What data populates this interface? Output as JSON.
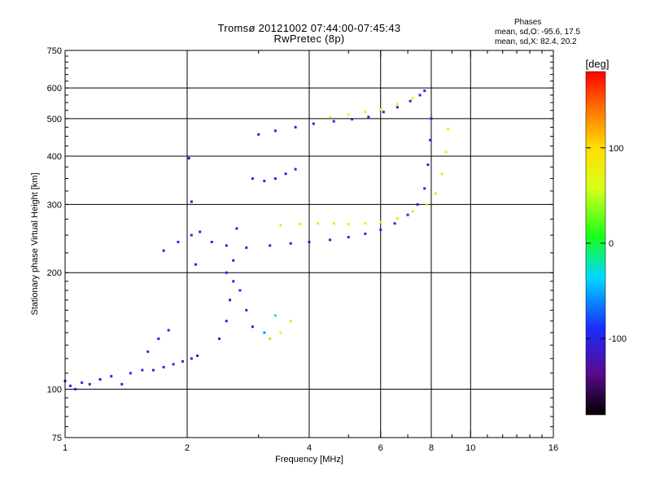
{
  "header": {
    "title_line1": "Tromsø 20121002 07:44:00-07:45:43",
    "title_line2": "RwPretec (8p)",
    "stats_title": "Phases",
    "stats_o": "mean, sd,O: -95.6, 17.5",
    "stats_x": "mean, sd,X:  82.4, 20.2"
  },
  "chart_data": {
    "type": "scatter",
    "title": "Tromsø 20121002 07:44:00-07:45:43",
    "subtitle": "RwPretec (8p)",
    "xlabel": "Frequency [MHz]",
    "ylabel": "Stationary phase Virtual Height [km]",
    "x_scale": "log",
    "y_scale": "log",
    "xlim": [
      1,
      16
    ],
    "ylim": [
      75,
      750
    ],
    "x_ticks": [
      1,
      2,
      4,
      6,
      8,
      10,
      16
    ],
    "y_ticks": [
      75,
      100,
      200,
      300,
      400,
      500,
      600,
      750
    ],
    "x_gridlines": [
      2,
      4,
      6,
      8,
      10
    ],
    "y_gridlines": [
      100,
      200,
      300,
      400,
      500,
      600
    ],
    "grid": true,
    "colorbar": {
      "label": "[deg]",
      "ticks": [
        -100,
        0,
        100
      ],
      "range": [
        -180,
        180
      ],
      "colormap": "rainbow: black-purple-blue-cyan-green-yellow-orange-red"
    },
    "series": [
      {
        "values": [
          [
            1.0,
            105,
            -110
          ],
          [
            1.03,
            102,
            -105
          ],
          [
            1.06,
            100,
            -100
          ],
          [
            1.1,
            104,
            -95
          ],
          [
            1.15,
            103,
            -105
          ],
          [
            1.22,
            106,
            -100
          ],
          [
            1.3,
            108,
            -95
          ],
          [
            1.38,
            103,
            -100
          ],
          [
            1.45,
            110,
            -90
          ],
          [
            1.55,
            112,
            -100
          ],
          [
            1.65,
            112,
            -105
          ],
          [
            1.75,
            114,
            -100
          ],
          [
            1.85,
            116,
            -95
          ],
          [
            1.95,
            118,
            -105
          ],
          [
            2.05,
            120,
            -100
          ],
          [
            2.12,
            122,
            -110
          ],
          [
            1.6,
            125,
            -90
          ],
          [
            1.7,
            135,
            -95
          ],
          [
            1.8,
            142,
            -100
          ]
        ]
      },
      {
        "values": [
          [
            2.3,
            240,
            -100
          ],
          [
            2.5,
            235,
            -105
          ],
          [
            2.8,
            232,
            -110
          ],
          [
            3.2,
            235,
            -110
          ],
          [
            3.6,
            238,
            -105
          ],
          [
            4.0,
            240,
            -105
          ],
          [
            4.5,
            243,
            -100
          ],
          [
            5.0,
            247,
            -100
          ],
          [
            5.5,
            252,
            -95
          ],
          [
            6.0,
            258,
            -95
          ],
          [
            6.5,
            268,
            -95
          ],
          [
            7.0,
            282,
            -90
          ],
          [
            7.4,
            300,
            -95
          ],
          [
            7.7,
            330,
            -100
          ],
          [
            7.85,
            380,
            -100
          ],
          [
            7.95,
            440,
            -105
          ],
          [
            8.0,
            500,
            -105
          ]
        ]
      },
      {
        "values": [
          [
            3.4,
            265,
            80
          ],
          [
            3.8,
            267,
            85
          ],
          [
            4.2,
            268,
            90
          ],
          [
            4.6,
            268,
            85
          ],
          [
            5.0,
            267,
            80
          ],
          [
            5.5,
            268,
            85
          ],
          [
            6.0,
            270,
            80
          ],
          [
            6.6,
            276,
            85
          ],
          [
            7.2,
            288,
            80
          ],
          [
            7.8,
            300,
            85
          ],
          [
            8.2,
            320,
            90
          ],
          [
            8.5,
            360,
            85
          ],
          [
            8.7,
            410,
            80
          ],
          [
            8.8,
            470,
            85
          ]
        ]
      },
      {
        "values": [
          [
            3.0,
            455,
            -110
          ],
          [
            3.3,
            465,
            -110
          ],
          [
            3.7,
            475,
            -105
          ],
          [
            4.1,
            485,
            -100
          ],
          [
            4.6,
            492,
            -95
          ],
          [
            5.1,
            498,
            -100
          ],
          [
            5.6,
            505,
            -90
          ],
          [
            6.1,
            520,
            -100
          ],
          [
            6.6,
            535,
            -95
          ],
          [
            7.1,
            555,
            -100
          ],
          [
            7.5,
            575,
            -105
          ],
          [
            7.7,
            590,
            -100
          ]
        ]
      },
      {
        "values": [
          [
            4.5,
            505,
            60
          ],
          [
            5.0,
            512,
            70
          ],
          [
            5.5,
            520,
            75
          ],
          [
            6.0,
            528,
            70
          ],
          [
            6.6,
            545,
            80
          ],
          [
            7.2,
            565,
            70
          ]
        ]
      },
      {
        "values": [
          [
            2.4,
            135,
            -95
          ],
          [
            2.5,
            150,
            -100
          ],
          [
            2.55,
            170,
            -105
          ],
          [
            2.6,
            190,
            -100
          ],
          [
            2.7,
            180,
            -95
          ],
          [
            2.8,
            160,
            -100
          ],
          [
            2.9,
            145,
            -95
          ],
          [
            2.5,
            200,
            -110
          ],
          [
            2.6,
            215,
            -105
          ],
          [
            2.65,
            260,
            -110
          ],
          [
            3.1,
            140,
            -60
          ],
          [
            3.2,
            135,
            40
          ],
          [
            3.4,
            140,
            60
          ],
          [
            3.6,
            150,
            50
          ],
          [
            3.3,
            155,
            -10
          ]
        ]
      },
      {
        "values": [
          [
            2.9,
            350,
            -95
          ],
          [
            3.1,
            345,
            -100
          ],
          [
            3.3,
            350,
            -95
          ],
          [
            3.5,
            360,
            -100
          ],
          [
            3.7,
            370,
            -95
          ]
        ]
      },
      {
        "values": [
          [
            1.75,
            228,
            -100
          ],
          [
            1.9,
            240,
            -100
          ],
          [
            2.05,
            250,
            -95
          ],
          [
            2.15,
            255,
            -100
          ],
          [
            2.1,
            210,
            -105
          ],
          [
            2.05,
            305,
            -110
          ],
          [
            2.02,
            395,
            -120
          ]
        ]
      }
    ]
  }
}
